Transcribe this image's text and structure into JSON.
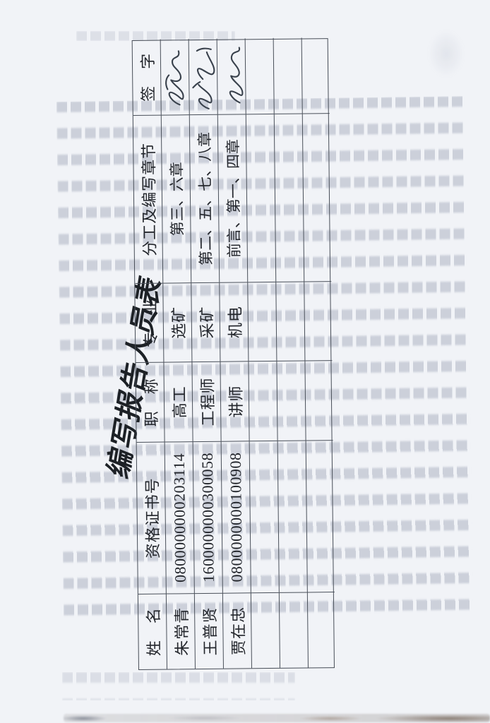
{
  "page": {
    "background": "#f1f3f7",
    "kind": "scanned report page, table rotated 90° counter-clockwise"
  },
  "title": "编写报告人员表",
  "table": {
    "headers": [
      "姓　名",
      "资格证书号",
      "职　称",
      "专　业",
      "分工及编写章节",
      "签　字"
    ],
    "rows": [
      {
        "name": "朱常青",
        "cert": "0800000000203114",
        "title": "高工",
        "major": "选矿",
        "chapters": "第三、六章"
      },
      {
        "name": "王普贤",
        "cert": "1600000000300058",
        "title": "工程师",
        "major": "采矿",
        "chapters": "第二、五、七、八章"
      },
      {
        "name": "贾在忠",
        "cert": "0800000000100908",
        "title": "讲师",
        "major": "机电",
        "chapters": "前言、第一、四章"
      }
    ],
    "empty_row_count": 3
  },
  "signatures": [
    {
      "for": "朱常青"
    },
    {
      "for": "王普贤"
    },
    {
      "for": "贾在忠"
    }
  ],
  "colors": {
    "table_border": "#474d57",
    "text": "#23262c",
    "signature_ink": "#39414c",
    "bleed_text": "rgba(118,128,152,0.3)"
  }
}
